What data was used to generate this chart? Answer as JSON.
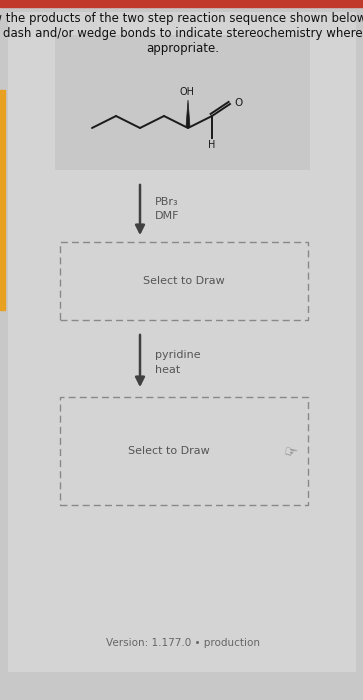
{
  "title_text": "Draw the products of the two step reaction sequence shown below. Use\ndash and/or wedge bonds to indicate stereochemistry where\nappropriate.",
  "title_fontsize": 8.5,
  "background_color": "#c8c8c8",
  "inner_panel_color": "#d4d4d4",
  "step1_reagents": [
    "PBr₃",
    "DMF"
  ],
  "step2_reagents": [
    "pyridine",
    "heat"
  ],
  "select_to_draw": "Select to Draw",
  "version_text": "Version: 1.177.0 • production",
  "molecule_color": "#1a1a1a",
  "arrow_color": "#404040",
  "box_color": "#888888",
  "reagent_color": "#555555",
  "version_color": "#666666",
  "top_bar_color": "#c0392b",
  "left_bar_color": "#e8a020",
  "mol_box_bg": "#c8c8c8"
}
